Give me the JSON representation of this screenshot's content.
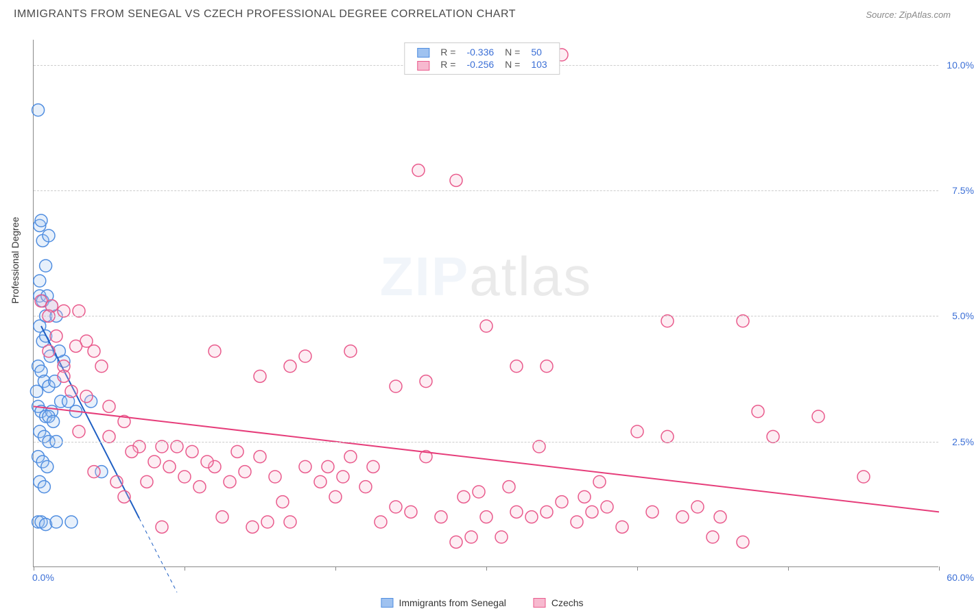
{
  "header": {
    "title": "IMMIGRANTS FROM SENEGAL VS CZECH PROFESSIONAL DEGREE CORRELATION CHART",
    "source": "Source: ZipAtlas.com"
  },
  "watermark": {
    "prefix": "ZIP",
    "suffix": "atlas"
  },
  "yaxis_title": "Professional Degree",
  "chart": {
    "type": "scatter",
    "xlim": [
      0,
      60
    ],
    "ylim": [
      0,
      10.5
    ],
    "x_ticks": [
      0,
      10,
      20,
      30,
      40,
      50,
      60
    ],
    "x_tick_labels_shown": {
      "0": "0.0%",
      "60": "60.0%"
    },
    "y_ticks": [
      2.5,
      5.0,
      7.5,
      10.0
    ],
    "y_tick_labels": {
      "2.5": "2.5%",
      "5.0": "5.0%",
      "7.5": "7.5%",
      "10.0": "10.0%"
    },
    "grid_color": "#cccccc",
    "background_color": "#ffffff",
    "marker_radius": 9,
    "marker_stroke_width": 1.5,
    "marker_fill_opacity": 0.25,
    "trendline_width": 2,
    "series": [
      {
        "name": "Immigrants from Senegal",
        "color_stroke": "#4f8de0",
        "color_fill": "#9fc2f0",
        "trendline_color": "#1f5fc3",
        "R": "-0.336",
        "N": "50",
        "trendline": {
          "x1": 0.5,
          "y1": 4.8,
          "x2": 9.5,
          "y2": -0.5,
          "dashed_after_x": 7.0
        },
        "points": [
          [
            0.3,
            9.1
          ],
          [
            0.4,
            6.8
          ],
          [
            0.6,
            6.5
          ],
          [
            0.5,
            6.9
          ],
          [
            0.8,
            6.0
          ],
          [
            1.0,
            6.6
          ],
          [
            0.4,
            5.4
          ],
          [
            0.6,
            5.3
          ],
          [
            0.8,
            5.0
          ],
          [
            1.2,
            5.2
          ],
          [
            0.4,
            4.8
          ],
          [
            0.6,
            4.5
          ],
          [
            0.8,
            4.6
          ],
          [
            1.5,
            5.0
          ],
          [
            0.3,
            4.0
          ],
          [
            0.5,
            3.9
          ],
          [
            0.7,
            3.7
          ],
          [
            1.0,
            3.6
          ],
          [
            1.4,
            3.7
          ],
          [
            2.0,
            4.1
          ],
          [
            0.3,
            3.2
          ],
          [
            0.5,
            3.1
          ],
          [
            0.8,
            3.0
          ],
          [
            1.2,
            3.1
          ],
          [
            1.8,
            3.3
          ],
          [
            2.3,
            3.3
          ],
          [
            0.4,
            2.7
          ],
          [
            0.7,
            2.6
          ],
          [
            1.0,
            2.5
          ],
          [
            1.5,
            2.5
          ],
          [
            0.3,
            2.2
          ],
          [
            0.6,
            2.1
          ],
          [
            0.9,
            2.0
          ],
          [
            0.4,
            1.7
          ],
          [
            0.7,
            1.6
          ],
          [
            1.0,
            3.0
          ],
          [
            1.3,
            2.9
          ],
          [
            0.3,
            0.9
          ],
          [
            0.5,
            0.9
          ],
          [
            0.8,
            0.85
          ],
          [
            1.5,
            0.9
          ],
          [
            2.5,
            0.9
          ],
          [
            0.4,
            5.7
          ],
          [
            0.9,
            5.4
          ],
          [
            1.7,
            4.3
          ],
          [
            1.1,
            4.2
          ],
          [
            0.2,
            3.5
          ],
          [
            2.8,
            3.1
          ],
          [
            4.5,
            1.9
          ],
          [
            3.8,
            3.3
          ]
        ]
      },
      {
        "name": "Czechs",
        "color_stroke": "#e95a8c",
        "color_fill": "#f7b9cf",
        "trendline_color": "#e63d7a",
        "R": "-0.256",
        "N": "103",
        "trendline": {
          "x1": 0,
          "y1": 3.2,
          "x2": 60,
          "y2": 1.1
        },
        "points": [
          [
            35.0,
            10.2
          ],
          [
            25.5,
            7.9
          ],
          [
            28.0,
            7.7
          ],
          [
            0.5,
            5.3
          ],
          [
            1.2,
            5.2
          ],
          [
            2.0,
            5.1
          ],
          [
            3.0,
            5.1
          ],
          [
            3.5,
            4.5
          ],
          [
            4.0,
            4.3
          ],
          [
            30.0,
            4.8
          ],
          [
            42.0,
            4.9
          ],
          [
            47.0,
            4.9
          ],
          [
            12.0,
            4.3
          ],
          [
            15.0,
            3.8
          ],
          [
            17.0,
            4.0
          ],
          [
            18.0,
            4.2
          ],
          [
            21.0,
            4.3
          ],
          [
            24.0,
            3.6
          ],
          [
            26.0,
            3.7
          ],
          [
            32.0,
            4.0
          ],
          [
            34.0,
            4.0
          ],
          [
            48.0,
            3.1
          ],
          [
            52.0,
            3.0
          ],
          [
            1.0,
            4.3
          ],
          [
            2.0,
            4.0
          ],
          [
            2.5,
            3.5
          ],
          [
            3.5,
            3.4
          ],
          [
            5.0,
            2.6
          ],
          [
            6.0,
            2.9
          ],
          [
            7.0,
            2.4
          ],
          [
            8.0,
            2.1
          ],
          [
            8.5,
            2.4
          ],
          [
            9.5,
            2.4
          ],
          [
            10.0,
            1.8
          ],
          [
            11.0,
            1.6
          ],
          [
            12.0,
            2.0
          ],
          [
            13.0,
            1.7
          ],
          [
            14.0,
            1.9
          ],
          [
            15.0,
            2.2
          ],
          [
            16.0,
            1.8
          ],
          [
            17.0,
            0.9
          ],
          [
            18.0,
            2.0
          ],
          [
            19.0,
            1.7
          ],
          [
            20.0,
            1.4
          ],
          [
            21.0,
            2.2
          ],
          [
            22.0,
            1.6
          ],
          [
            23.0,
            0.9
          ],
          [
            24.0,
            1.2
          ],
          [
            25.0,
            1.1
          ],
          [
            26.0,
            2.2
          ],
          [
            27.0,
            1.0
          ],
          [
            28.0,
            0.5
          ],
          [
            29.0,
            0.6
          ],
          [
            30.0,
            1.0
          ],
          [
            31.0,
            0.6
          ],
          [
            32.0,
            1.1
          ],
          [
            33.0,
            1.0
          ],
          [
            34.0,
            1.1
          ],
          [
            35.0,
            1.3
          ],
          [
            36.0,
            0.9
          ],
          [
            37.0,
            1.1
          ],
          [
            38.0,
            1.2
          ],
          [
            40.0,
            2.7
          ],
          [
            41.0,
            1.1
          ],
          [
            42.0,
            2.6
          ],
          [
            43.0,
            1.0
          ],
          [
            44.0,
            1.2
          ],
          [
            45.0,
            0.6
          ],
          [
            47.0,
            0.5
          ],
          [
            49.0,
            2.6
          ],
          [
            55.0,
            1.8
          ],
          [
            4.0,
            1.9
          ],
          [
            5.5,
            1.7
          ],
          [
            6.5,
            2.3
          ],
          [
            7.5,
            1.7
          ],
          [
            9.0,
            2.0
          ],
          [
            10.5,
            2.3
          ],
          [
            11.5,
            2.1
          ],
          [
            12.5,
            1.0
          ],
          [
            13.5,
            2.3
          ],
          [
            14.5,
            0.8
          ],
          [
            15.5,
            0.9
          ],
          [
            16.5,
            1.3
          ],
          [
            19.5,
            2.0
          ],
          [
            20.5,
            1.8
          ],
          [
            22.5,
            2.0
          ],
          [
            28.5,
            1.4
          ],
          [
            29.5,
            1.5
          ],
          [
            31.5,
            1.6
          ],
          [
            36.5,
            1.4
          ],
          [
            39.0,
            0.8
          ],
          [
            45.5,
            1.0
          ],
          [
            37.5,
            1.7
          ],
          [
            33.5,
            2.4
          ],
          [
            1.0,
            5.0
          ],
          [
            1.5,
            4.6
          ],
          [
            2.0,
            3.8
          ],
          [
            2.8,
            4.4
          ],
          [
            4.5,
            4.0
          ],
          [
            3.0,
            2.7
          ],
          [
            5.0,
            3.2
          ],
          [
            6.0,
            1.4
          ],
          [
            8.5,
            0.8
          ]
        ]
      }
    ]
  },
  "legend_bottom": [
    {
      "label": "Immigrants from Senegal",
      "stroke": "#4f8de0",
      "fill": "#9fc2f0"
    },
    {
      "label": "Czechs",
      "stroke": "#e95a8c",
      "fill": "#f7b9cf"
    }
  ]
}
